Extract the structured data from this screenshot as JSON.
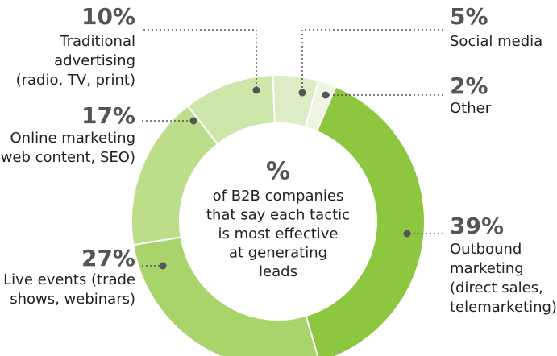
{
  "chart_data": {
    "type": "donut",
    "categories": [
      [
        "Other"
      ],
      [
        "Outbound",
        "marketing",
        "(direct sales,",
        "telemarketing)"
      ],
      [
        "Live events (trade",
        "shows, webinars)"
      ],
      [
        "Online marketing",
        "(web content, SEO)"
      ],
      [
        "Traditional",
        "advertising",
        "(radio, TV, print)"
      ],
      [
        "Social media"
      ]
    ],
    "values": [
      2,
      39,
      27,
      17,
      10,
      5
    ],
    "value_labels": [
      "2%",
      "39%",
      "27%",
      "17%",
      "10%",
      "5%"
    ],
    "colors": [
      "#eef6e2",
      "#8dc63f",
      "#a9d46c",
      "#bcdd8a",
      "#cde6aa",
      "#dcedc6"
    ],
    "center_title": "%",
    "center_text": [
      "of B2B companies",
      "that say each tactic",
      "is most effective",
      "at generating",
      "leads"
    ]
  }
}
